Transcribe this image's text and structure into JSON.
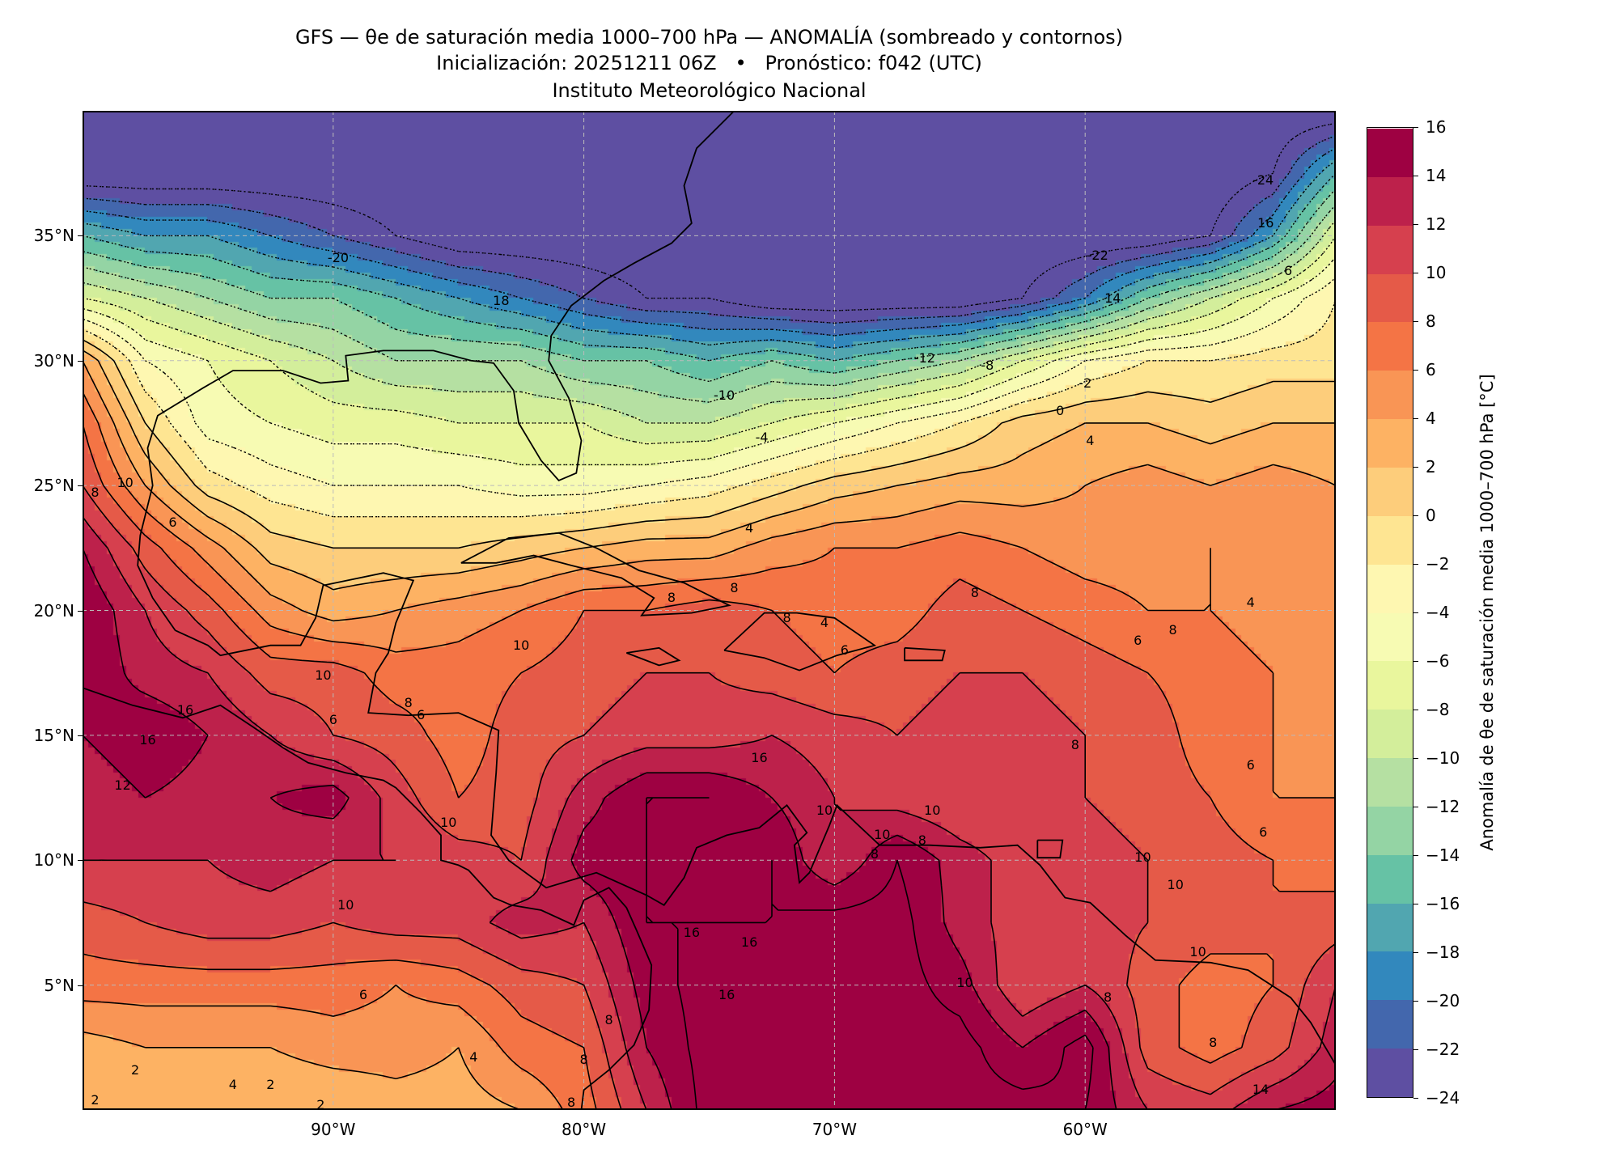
{
  "header": {
    "title_line1": "GFS — θe de saturación media 1000–700 hPa — ANOMALÍA (sombreado y contornos)",
    "title_line2": "Inicialización: 20251211 06Z   •   Pronóstico: f042 (UTC)",
    "title_line3": "Instituto Meteorológico Nacional"
  },
  "chart_data": {
    "type": "heatmap",
    "title": "GFS — θe de saturación media 1000–700 hPa — ANOMALÍA (sombreado y contornos)",
    "xlim": [
      -100,
      -50
    ],
    "ylim": [
      0,
      40
    ],
    "grid": true,
    "x_ticks": [
      {
        "value": -90,
        "label": "90°W"
      },
      {
        "value": -80,
        "label": "80°W"
      },
      {
        "value": -70,
        "label": "70°W"
      },
      {
        "value": -60,
        "label": "60°W"
      }
    ],
    "y_ticks": [
      {
        "value": 35,
        "label": "35°N"
      },
      {
        "value": 30,
        "label": "30°N"
      },
      {
        "value": 25,
        "label": "25°N"
      },
      {
        "value": 20,
        "label": "20°N"
      },
      {
        "value": 15,
        "label": "15°N"
      },
      {
        "value": 10,
        "label": "10°N"
      },
      {
        "value": 5,
        "label": "5°N"
      }
    ],
    "colorbar": {
      "label": "Anomalía de θe de saturación media 1000–700 hPa [°C]",
      "levels": [
        -24,
        -22,
        -20,
        -18,
        -16,
        -14,
        -12,
        -10,
        -8,
        -6,
        -4,
        -2,
        0,
        2,
        4,
        6,
        8,
        10,
        12,
        14,
        16
      ],
      "tick_labels": [
        "−24",
        "−22",
        "−20",
        "−18",
        "−16",
        "−14",
        "−12",
        "−10",
        "−8",
        "−6",
        "−4",
        "−2",
        "0",
        "2",
        "4",
        "6",
        "8",
        "10",
        "12",
        "14",
        "16"
      ],
      "colors": [
        "#5e4fa2",
        "#4367ad",
        "#3288bd",
        "#51a6b0",
        "#66c2a5",
        "#94d4a4",
        "#b5e0a2",
        "#d3ee9b",
        "#e9f69d",
        "#f7fbb3",
        "#fef7b1",
        "#fee592",
        "#fdcd7b",
        "#fdb263",
        "#f99555",
        "#f47445",
        "#e55a48",
        "#d6404e",
        "#bd214b",
        "#9e0142"
      ]
    },
    "contour_interval": 2,
    "grid_field": {
      "lon_start": -100,
      "lon_step": 2.5,
      "lat_start": 40,
      "lat_step": -2.5,
      "values": [
        [
          -26,
          -26,
          -26,
          -26,
          -26,
          -26,
          -26,
          -26,
          -26,
          -26,
          -26,
          -26,
          -26,
          -26,
          -26,
          -26,
          -26,
          -26,
          -26,
          -26,
          -26
        ],
        [
          -26,
          -26,
          -26,
          -26,
          -26,
          -26,
          -26,
          -26,
          -26,
          -26,
          -26,
          -26,
          -26,
          -26,
          -26,
          -26,
          -26,
          -26,
          -26,
          -24,
          -16
        ],
        [
          -16,
          -18,
          -18,
          -20,
          -22,
          -24,
          -26,
          -26,
          -26,
          -26,
          -26,
          -26,
          -26,
          -26,
          -26,
          -26,
          -26,
          -26,
          -24,
          -18,
          -8
        ],
        [
          -8,
          -10,
          -12,
          -14,
          -14,
          -16,
          -18,
          -20,
          -22,
          -24,
          -24,
          -26,
          -26,
          -26,
          -26,
          -24,
          -20,
          -14,
          -10,
          -6,
          -2
        ],
        [
          4,
          -4,
          -6,
          -8,
          -10,
          -12,
          -12,
          -12,
          -14,
          -14,
          -16,
          -14,
          -16,
          -14,
          -12,
          -8,
          -4,
          -2,
          -2,
          -1,
          -1
        ],
        [
          8,
          0,
          -5,
          -6,
          -7,
          -7,
          -8,
          -8,
          -8,
          -10,
          -10,
          -8,
          -6,
          -4,
          -2,
          1,
          2,
          2,
          1,
          2,
          2
        ],
        [
          10,
          4,
          -1,
          -3,
          -4,
          -4,
          -4,
          -5,
          -5,
          -4,
          -3,
          -1,
          1,
          2,
          3,
          3,
          4,
          5,
          4,
          5,
          4
        ],
        [
          14,
          9,
          5,
          1,
          0,
          0,
          0,
          1,
          2,
          3,
          3,
          5,
          6,
          6,
          7,
          6,
          5,
          5,
          6,
          5,
          5
        ],
        [
          16,
          12,
          9,
          5,
          3,
          4,
          5,
          6,
          8,
          8,
          9,
          8,
          7,
          7,
          9,
          8,
          7,
          6,
          6,
          5,
          4
        ],
        [
          16,
          13,
          12,
          9,
          9,
          7,
          7,
          8,
          9,
          10,
          10,
          9,
          8,
          9,
          10,
          10,
          9,
          8,
          7,
          6,
          5
        ],
        [
          14,
          16,
          14,
          12,
          10,
          9,
          7,
          9,
          10,
          11,
          11,
          12,
          11,
          10,
          11,
          11,
          10,
          9,
          7,
          6,
          5
        ],
        [
          12,
          14,
          13,
          14,
          15,
          11,
          8,
          9,
          13,
          16,
          16,
          14,
          12,
          11,
          10,
          10,
          10,
          9,
          8,
          6,
          6
        ],
        [
          12,
          12,
          12,
          13,
          12,
          12,
          11,
          10,
          15,
          16,
          15,
          16,
          12,
          16,
          13,
          11,
          11,
          10,
          9,
          8,
          7
        ],
        [
          9,
          10,
          11,
          11,
          10,
          11,
          11,
          13,
          12,
          16,
          16,
          16,
          17,
          17,
          13,
          11,
          11,
          10,
          9,
          8,
          9
        ],
        [
          7,
          7,
          7,
          7,
          7,
          6,
          7,
          9,
          10,
          15,
          17,
          17,
          17,
          17,
          15,
          10,
          12,
          9,
          7,
          8,
          12
        ],
        [
          3,
          4,
          4,
          4,
          5,
          5,
          4,
          7,
          8,
          14,
          17,
          17,
          17,
          17,
          17,
          14,
          17,
          9,
          7,
          9,
          13
        ],
        [
          2,
          3,
          3,
          2,
          2,
          3,
          3,
          4,
          7,
          12,
          17,
          17,
          17,
          17,
          17,
          17,
          16,
          12,
          11,
          14,
          15
        ]
      ]
    },
    "contour_labels": [
      {
        "text": "-24",
        "lon": -52.9,
        "lat": 37.2
      },
      {
        "text": "16",
        "lon": -52.8,
        "lat": 35.5
      },
      {
        "text": "-20",
        "lon": -89.8,
        "lat": 34.1
      },
      {
        "text": "-22",
        "lon": -59.5,
        "lat": 34.2
      },
      {
        "text": "6",
        "lon": -51.9,
        "lat": 33.6
      },
      {
        "text": "18",
        "lon": -83.3,
        "lat": 32.4
      },
      {
        "text": "14",
        "lon": -58.9,
        "lat": 32.5
      },
      {
        "text": "-12",
        "lon": -66.4,
        "lat": 30.1
      },
      {
        "text": "-8",
        "lon": -63.9,
        "lat": 29.8
      },
      {
        "text": "-10",
        "lon": -74.4,
        "lat": 28.6
      },
      {
        "text": "-2",
        "lon": -60.0,
        "lat": 29.1
      },
      {
        "text": "0",
        "lon": -61.0,
        "lat": 28.0
      },
      {
        "text": "-4",
        "lon": -72.9,
        "lat": 26.9
      },
      {
        "text": "4",
        "lon": -59.8,
        "lat": 26.8
      },
      {
        "text": "10",
        "lon": -98.3,
        "lat": 25.1
      },
      {
        "text": "8",
        "lon": -99.5,
        "lat": 24.7
      },
      {
        "text": "6",
        "lon": -96.4,
        "lat": 23.5
      },
      {
        "text": "4",
        "lon": -73.4,
        "lat": 23.3
      },
      {
        "text": "8",
        "lon": -76.5,
        "lat": 20.5
      },
      {
        "text": "8",
        "lon": -74.0,
        "lat": 20.9
      },
      {
        "text": "8",
        "lon": -64.4,
        "lat": 20.7
      },
      {
        "text": "4",
        "lon": -53.4,
        "lat": 20.3
      },
      {
        "text": "4",
        "lon": -70.4,
        "lat": 19.5
      },
      {
        "text": "8",
        "lon": -71.9,
        "lat": 19.7
      },
      {
        "text": "6",
        "lon": -57.9,
        "lat": 18.8
      },
      {
        "text": "8",
        "lon": -56.5,
        "lat": 19.2
      },
      {
        "text": "10",
        "lon": -82.5,
        "lat": 18.6
      },
      {
        "text": "6",
        "lon": -69.6,
        "lat": 18.4
      },
      {
        "text": "10",
        "lon": -90.4,
        "lat": 17.4
      },
      {
        "text": "8",
        "lon": -87.0,
        "lat": 16.3
      },
      {
        "text": "6",
        "lon": -86.5,
        "lat": 15.8
      },
      {
        "text": "6",
        "lon": -90.0,
        "lat": 15.6
      },
      {
        "text": "16",
        "lon": -95.9,
        "lat": 16.0
      },
      {
        "text": "16",
        "lon": -97.4,
        "lat": 14.8
      },
      {
        "text": "8",
        "lon": -60.4,
        "lat": 14.6
      },
      {
        "text": "16",
        "lon": -73.0,
        "lat": 14.1
      },
      {
        "text": "6",
        "lon": -53.4,
        "lat": 13.8
      },
      {
        "text": "12",
        "lon": -98.4,
        "lat": 13.0
      },
      {
        "text": "10",
        "lon": -66.1,
        "lat": 12.0
      },
      {
        "text": "10",
        "lon": -70.4,
        "lat": 12.0
      },
      {
        "text": "10",
        "lon": -85.4,
        "lat": 11.5
      },
      {
        "text": "6",
        "lon": -52.9,
        "lat": 11.1
      },
      {
        "text": "10",
        "lon": -68.1,
        "lat": 11.0
      },
      {
        "text": "8",
        "lon": -66.5,
        "lat": 10.8
      },
      {
        "text": "8",
        "lon": -68.4,
        "lat": 10.7
      },
      {
        "text": "10",
        "lon": -57.7,
        "lat": 10.1
      },
      {
        "text": "10",
        "lon": -56.4,
        "lat": 9.0
      },
      {
        "text": "10",
        "lon": -89.5,
        "lat": 8.2
      },
      {
        "text": "16",
        "lon": -75.7,
        "lat": 7.1
      },
      {
        "text": "16",
        "lon": -73.4,
        "lat": 6.7
      },
      {
        "text": "10",
        "lon": -64.8,
        "lat": 5.1
      },
      {
        "text": "10",
        "lon": -55.5,
        "lat": 6.3
      },
      {
        "text": "6",
        "lon": -88.8,
        "lat": 4.6
      },
      {
        "text": "16",
        "lon": -74.3,
        "lat": 4.6
      },
      {
        "text": "8",
        "lon": -59.1,
        "lat": 4.5
      },
      {
        "text": "8",
        "lon": -79.0,
        "lat": 3.6
      },
      {
        "text": "4",
        "lon": -84.4,
        "lat": 2.1
      },
      {
        "text": "8",
        "lon": -80.0,
        "lat": 2.0
      },
      {
        "text": "2",
        "lon": -97.9,
        "lat": 1.6
      },
      {
        "text": "4",
        "lon": -94.0,
        "lat": 1.0
      },
      {
        "text": "2",
        "lon": -92.5,
        "lat": 1.0
      },
      {
        "text": "8",
        "lon": -54.9,
        "lat": 2.7
      },
      {
        "text": "2",
        "lon": -99.5,
        "lat": 0.4
      },
      {
        "text": "2",
        "lon": -90.5,
        "lat": 0.2
      },
      {
        "text": "8",
        "lon": -80.5,
        "lat": 0.3
      },
      {
        "text": "14",
        "lon": -53.0,
        "lat": 0.8
      }
    ]
  }
}
